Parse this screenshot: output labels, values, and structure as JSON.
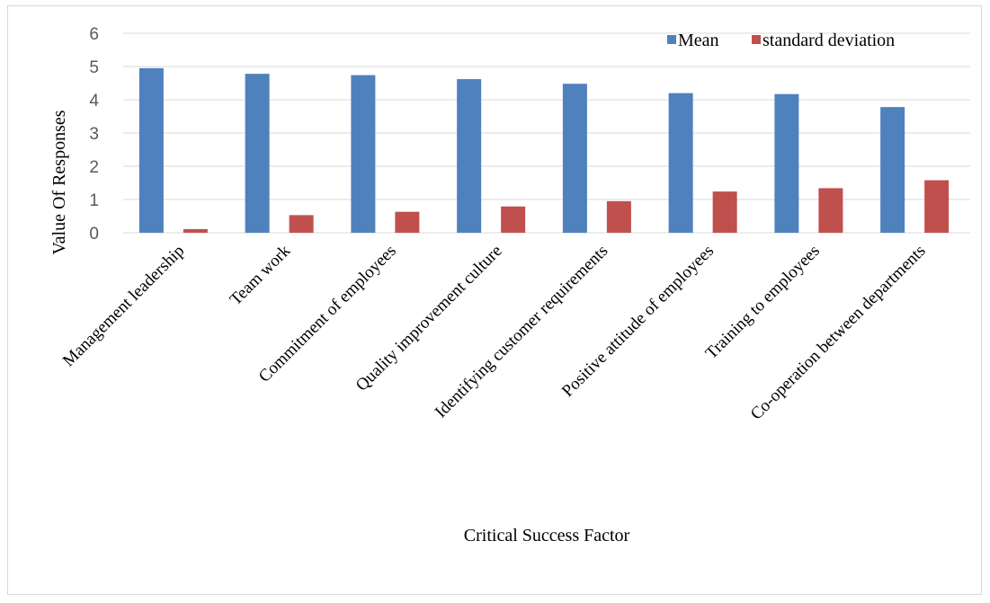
{
  "chart_data": {
    "type": "bar",
    "title": "",
    "xlabel": "Critical Success Factor",
    "ylabel": "Value Of Responses",
    "ylim": [
      0,
      6
    ],
    "yticks": [
      0,
      1,
      2,
      3,
      4,
      5,
      6
    ],
    "grid": true,
    "legend_position": "top-right",
    "categories": [
      "Management leadership",
      "Team work",
      "Commitment of employees",
      "Quality improvement culture",
      "Identifying customer requirements",
      "Positive attitude of employees",
      "Training to employees",
      "Co-operation between departments"
    ],
    "series": [
      {
        "name": "Mean",
        "color": "#4f81bd",
        "values": [
          4.95,
          4.78,
          4.74,
          4.62,
          4.48,
          4.2,
          4.17,
          3.78
        ]
      },
      {
        "name": "standard deviation",
        "color": "#c0504d",
        "values": [
          0.11,
          0.53,
          0.63,
          0.79,
          0.95,
          1.24,
          1.34,
          1.58
        ]
      }
    ]
  }
}
